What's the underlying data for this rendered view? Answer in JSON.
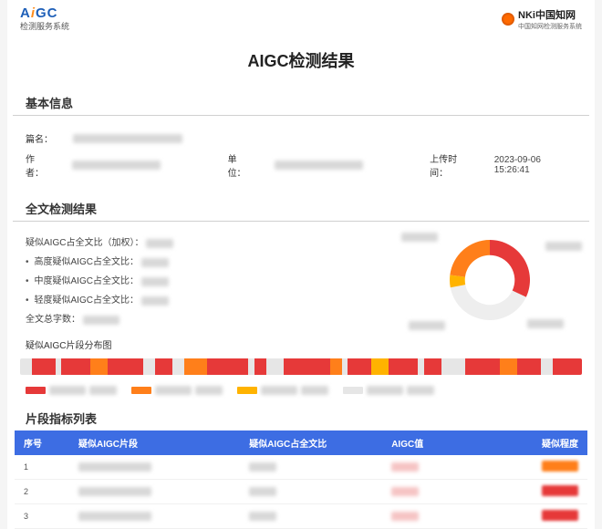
{
  "header": {
    "logo_main": "AiGC",
    "logo_sub": "检测服务系统",
    "right_brand": "NKi中国知网",
    "right_sub": "中国知网检测服务系统"
  },
  "title": "AIGC检测结果",
  "basic_info": {
    "section_title": "基本信息",
    "name_label": "篇名：",
    "author_label": "作者：",
    "unit_label": "单位：",
    "upload_label": "上传时间：",
    "upload_value": "2023-09-06 15:26:41"
  },
  "detect": {
    "section_title": "全文检测结果",
    "line_total": "疑似AIGC占全文比（加权）：",
    "line_high": "高度疑似AIGC占全文比：",
    "line_mid": "中度疑似AIGC占全文比：",
    "line_low": "轻度疑似AIGC占全文比：",
    "line_words": "全文总字数：",
    "donut": {
      "segments": [
        {
          "color": "#e63939",
          "value": 0.32
        },
        {
          "color": "#eeeeee",
          "value": 0.4
        },
        {
          "color": "#ffb300",
          "value": 0.05
        },
        {
          "color": "#ff7f1a",
          "value": 0.23
        }
      ],
      "inner_ratio": 0.62,
      "size": 88
    },
    "dist_label": "疑似AIGC片段分布图"
  },
  "strip_colors": {
    "red": "#e63939",
    "orange": "#ff7f1a",
    "yellow": "#ffb300",
    "gray": "#e6e6e6"
  },
  "strip_pattern": [
    [
      "gray",
      2
    ],
    [
      "red",
      4
    ],
    [
      "gray",
      1
    ],
    [
      "red",
      5
    ],
    [
      "orange",
      3
    ],
    [
      "red",
      6
    ],
    [
      "gray",
      2
    ],
    [
      "red",
      3
    ],
    [
      "gray",
      2
    ],
    [
      "orange",
      4
    ],
    [
      "red",
      7
    ],
    [
      "gray",
      1
    ],
    [
      "red",
      2
    ],
    [
      "gray",
      3
    ],
    [
      "red",
      8
    ],
    [
      "orange",
      2
    ],
    [
      "gray",
      1
    ],
    [
      "red",
      4
    ],
    [
      "yellow",
      3
    ],
    [
      "red",
      5
    ],
    [
      "gray",
      1
    ],
    [
      "red",
      3
    ],
    [
      "gray",
      4
    ],
    [
      "red",
      6
    ],
    [
      "orange",
      3
    ],
    [
      "red",
      4
    ],
    [
      "gray",
      2
    ],
    [
      "red",
      5
    ]
  ],
  "legend": [
    {
      "color": "#e63939"
    },
    {
      "color": "#ff7f1a"
    },
    {
      "color": "#ffb300"
    },
    {
      "color": "#e6e6e6"
    }
  ],
  "table": {
    "section_title": "片段指标列表",
    "headers": [
      "序号",
      "疑似AIGC片段",
      "疑似AIGC占全文比",
      "AIGC值",
      "疑似程度"
    ],
    "rows": [
      {
        "idx": "1",
        "pill_color": "#ff7f1a"
      },
      {
        "idx": "2",
        "pill_color": "#e63939"
      },
      {
        "idx": "3",
        "pill_color": "#e63939"
      }
    ]
  }
}
